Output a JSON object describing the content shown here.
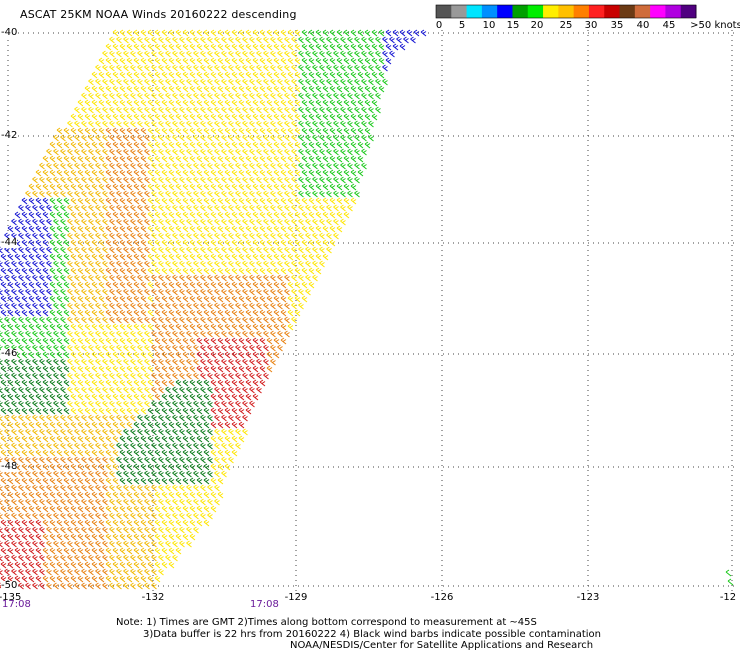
{
  "title": "ASCAT 25KM NOAA Winds 20160222 descending",
  "legend": {
    "labels": [
      "0",
      "5",
      "10",
      "15",
      "20",
      "25",
      "30",
      "35",
      "40",
      "45",
      ">50 knots"
    ],
    "colors": [
      "#555555",
      "#999999",
      "#00e5ff",
      "#0090ff",
      "#0000ff",
      "#00a000",
      "#00ee00",
      "#ffee00",
      "#ffc000",
      "#ff7f00",
      "#ff2020",
      "#c80000",
      "#6b3a14",
      "#cf6b3a",
      "#ff00ff",
      "#b000e0",
      "#500080"
    ]
  },
  "latitudes": [
    "-40",
    "-42",
    "-44",
    "-46",
    "-48",
    "-50"
  ],
  "longitudes": [
    "-135",
    "-132",
    "-129",
    "-126",
    "-123",
    "-12"
  ],
  "times": {
    "left": "17:08",
    "middle": "17:08"
  },
  "notes": {
    "line1": "Note: 1) Times are GMT 2)Times along bottom correspond to measurement at ~45S",
    "line2": "3)Data buffer is 22 hrs from 20160222 4) Black wind barbs indicate possible contamination",
    "line3": "NOAA/NESDIS/Center for Satellite Applications and Research"
  }
}
